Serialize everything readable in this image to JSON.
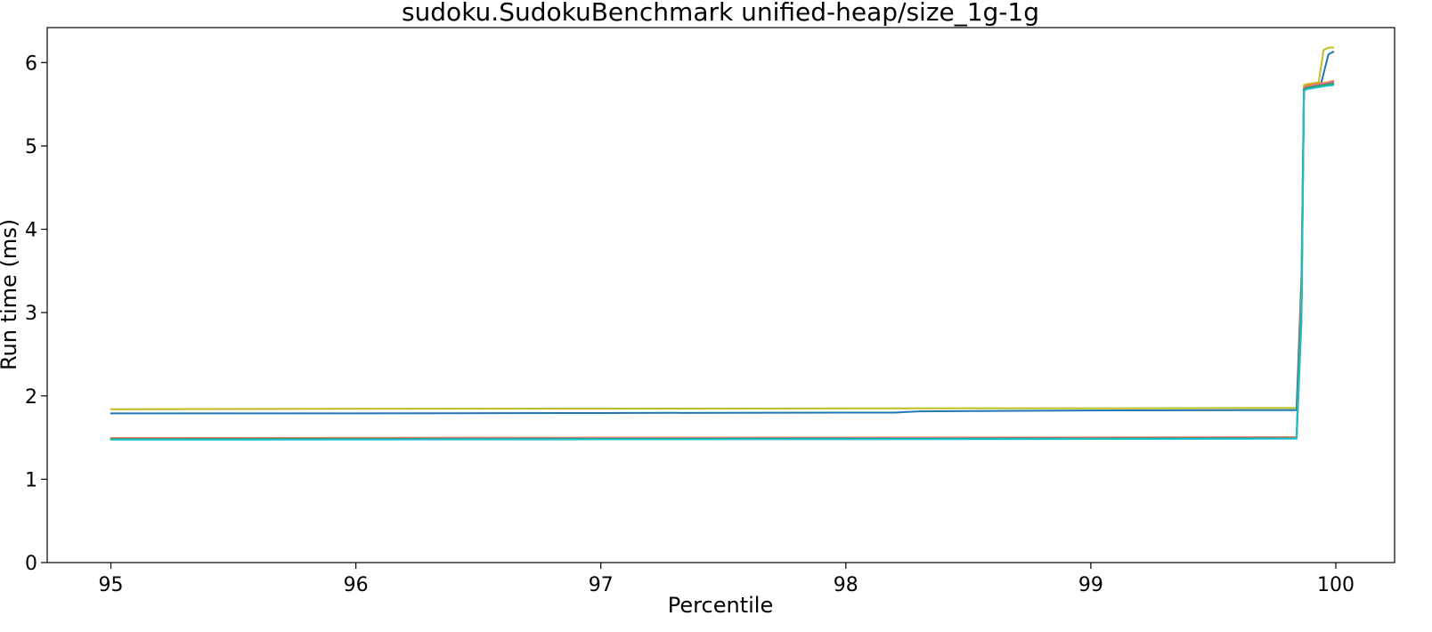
{
  "chart_data": {
    "type": "line",
    "title": "sudoku.SudokuBenchmark unified-heap/size_1g-1g",
    "xlabel": "Percentile",
    "ylabel": "Run time (ms)",
    "xlim": [
      94.74,
      100.24
    ],
    "ylim": [
      0,
      6.42
    ],
    "grid": false,
    "legend": "none",
    "xticks": [
      95,
      96,
      97,
      98,
      99,
      100
    ],
    "xtick_labels": [
      "95",
      "96",
      "97",
      "98",
      "99",
      "100"
    ],
    "yticks": [
      0,
      1,
      2,
      3,
      4,
      5,
      6
    ],
    "ytick_labels": [
      "0",
      "1",
      "2",
      "3",
      "4",
      "5",
      "6"
    ],
    "series": [
      {
        "color": "#bcbd22",
        "x": [
          95,
          96,
          97,
          98,
          99,
          99.84,
          99.86,
          99.87,
          99.88,
          99.9,
          99.93,
          99.95,
          99.97,
          99.99
        ],
        "y": [
          1.84,
          1.845,
          1.848,
          1.85,
          1.852,
          1.855,
          3.5,
          5.73,
          5.74,
          5.75,
          5.76,
          6.15,
          6.18,
          6.18
        ]
      },
      {
        "color": "#1f77b4",
        "x": [
          95,
          96,
          97,
          98,
          98.2,
          98.3,
          99,
          99.84,
          99.86,
          99.87,
          99.88,
          99.9,
          99.94,
          99.97,
          99.99
        ],
        "y": [
          1.79,
          1.79,
          1.795,
          1.8,
          1.8,
          1.815,
          1.825,
          1.83,
          3.4,
          5.7,
          5.71,
          5.73,
          5.75,
          6.1,
          6.13
        ]
      },
      {
        "color": "#ff7f0e",
        "x": [
          95,
          96,
          97,
          98,
          99,
          99.84,
          99.86,
          99.87,
          99.88,
          99.92,
          99.96,
          99.99
        ],
        "y": [
          1.495,
          1.497,
          1.499,
          1.5,
          1.502,
          1.505,
          3.3,
          5.7,
          5.72,
          5.74,
          5.76,
          5.78
        ]
      },
      {
        "color": "#e377c2",
        "x": [
          95,
          96,
          97,
          98,
          99,
          99.84,
          99.86,
          99.87,
          99.88,
          99.92,
          99.96,
          99.99
        ],
        "y": [
          1.49,
          1.492,
          1.494,
          1.496,
          1.498,
          1.5,
          3.2,
          5.69,
          5.71,
          5.73,
          5.75,
          5.77
        ]
      },
      {
        "color": "#7f7f7f",
        "x": [
          95,
          96,
          97,
          98,
          99,
          99.84,
          99.86,
          99.87,
          99.88,
          99.92,
          99.96,
          99.99
        ],
        "y": [
          1.485,
          1.487,
          1.489,
          1.49,
          1.492,
          1.495,
          3.1,
          5.68,
          5.7,
          5.72,
          5.74,
          5.76
        ]
      },
      {
        "color": "#2ca02c",
        "x": [
          95,
          96,
          97,
          98,
          99,
          99.84,
          99.86,
          99.87,
          99.88,
          99.92,
          99.96,
          99.99
        ],
        "y": [
          1.48,
          1.482,
          1.484,
          1.486,
          1.488,
          1.49,
          3.0,
          5.67,
          5.69,
          5.71,
          5.73,
          5.74
        ]
      },
      {
        "color": "#17becf",
        "x": [
          95,
          96,
          97,
          98,
          99,
          99.84,
          99.86,
          99.87,
          99.88,
          99.92,
          99.96,
          99.99
        ],
        "y": [
          1.475,
          1.477,
          1.479,
          1.481,
          1.483,
          1.488,
          2.9,
          5.66,
          5.68,
          5.7,
          5.72,
          5.73
        ]
      }
    ]
  }
}
